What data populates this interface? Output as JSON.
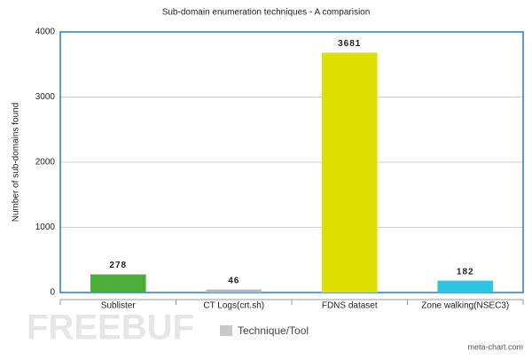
{
  "chart_data": {
    "type": "bar",
    "title": "Sub-domain enumeration techniques - A comparision",
    "y_label": "Number of sub-domains found",
    "categories": [
      "Sublister",
      "CT Logs(crt.sh)",
      "FDNS dataset",
      "Zone walking(NSEC3)"
    ],
    "series": [
      {
        "name": "Technique/Tool",
        "color": "#c8c8c8",
        "values": [
          278,
          46,
          3681,
          182
        ],
        "colors": [
          "#4cae38",
          "#b8b8b8",
          "#dde000",
          "#2cc6e2"
        ]
      }
    ],
    "ylim": [
      0,
      4000
    ],
    "yticks": [
      0,
      1000,
      2000,
      3000,
      4000
    ],
    "grid": true,
    "credit": "meta-chart.com",
    "watermark": "FREEBUF"
  }
}
